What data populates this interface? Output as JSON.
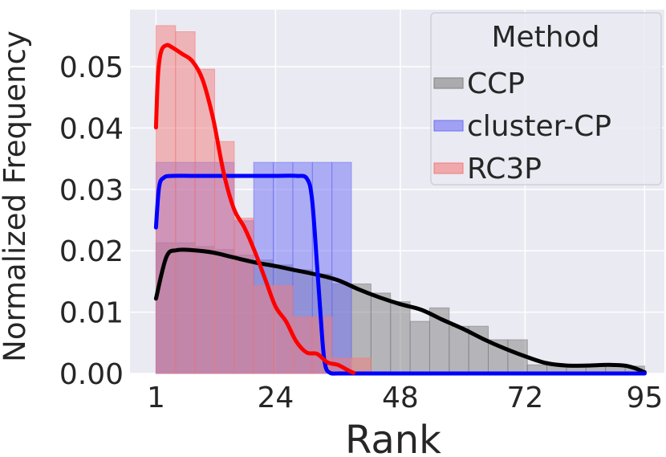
{
  "chart_data": {
    "type": "histogram",
    "title": "",
    "xlabel": "Rank",
    "ylabel": "Normalized Frequency",
    "xlim": [
      -4,
      98.8
    ],
    "ylim": [
      0,
      0.0593
    ],
    "xticks": [
      1,
      24,
      48,
      72,
      95
    ],
    "xtick_labels": [
      "1",
      "24",
      "48",
      "72",
      "95"
    ],
    "yticks": [
      0,
      0.01,
      0.02,
      0.03,
      0.04,
      0.05
    ],
    "ytick_labels": [
      "0.00",
      "0.01",
      "0.02",
      "0.03",
      "0.04",
      "0.05"
    ],
    "grid": true,
    "legend": {
      "title": "Method",
      "placement": "top-right"
    },
    "series": [
      {
        "name": "CCP",
        "color": "#808080",
        "line_color": "#000000",
        "hist_edges": [
          1,
          4.76,
          8.52,
          12.28,
          16.04,
          19.8,
          23.56,
          27.32,
          31.08,
          34.84,
          38.6,
          42.36,
          46.12,
          49.88,
          53.64,
          57.4,
          61.16,
          64.92,
          68.68,
          72.44,
          76.2,
          79.96,
          83.72,
          87.48,
          91.24,
          95
        ],
        "hist_values": [
          0.0213,
          0.0213,
          0.0207,
          0.0202,
          0.0193,
          0.0185,
          0.0177,
          0.0169,
          0.0162,
          0.0146,
          0.0146,
          0.0131,
          0.0117,
          0.0085,
          0.0107,
          0.0077,
          0.0077,
          0.0055,
          0.0055,
          0.0014,
          0.0014,
          0.0014,
          0.0014,
          0.0014,
          0.0012
        ],
        "kde_x": [
          1,
          3,
          5,
          8,
          12,
          16,
          20,
          24,
          28,
          32,
          36,
          40,
          44,
          48,
          52,
          56,
          60,
          64,
          68,
          72,
          76,
          80,
          84,
          88,
          91,
          93,
          95
        ],
        "kde_y": [
          0.0122,
          0.019,
          0.0201,
          0.0201,
          0.0197,
          0.0189,
          0.0181,
          0.0175,
          0.0168,
          0.0161,
          0.0152,
          0.0137,
          0.0124,
          0.0113,
          0.0104,
          0.0088,
          0.0073,
          0.0056,
          0.0041,
          0.0028,
          0.0017,
          0.0013,
          0.0013,
          0.0014,
          0.0013,
          0.0009,
          0.0002
        ]
      },
      {
        "name": "cluster-CP",
        "color": "#6e6ef5",
        "line_color": "#0000ff",
        "hist_edges": [
          1,
          4.76,
          8.52,
          12.28,
          16.04,
          19.8,
          23.56,
          27.32,
          31.08,
          34.84,
          38.6,
          42.36,
          46.12,
          49.88,
          53.64,
          57.4,
          61.16,
          64.92,
          68.68,
          72.44,
          76.2,
          79.96,
          83.72,
          87.48,
          91.24,
          95
        ],
        "hist_values": [
          0.0344,
          0.0344,
          0.0344,
          0.0344,
          0.0249,
          0.0344,
          0.0344,
          0.0344,
          0.0344,
          0.0344,
          0,
          0,
          0,
          0,
          0,
          0,
          0,
          0,
          0,
          0,
          0,
          0,
          0,
          0,
          0
        ],
        "kde_x": [
          1,
          1.6,
          2.5,
          4,
          8,
          12,
          16,
          20,
          24,
          28,
          30,
          31,
          32,
          33,
          33.6,
          34.5,
          36,
          40,
          50,
          60,
          70,
          80,
          90,
          95
        ],
        "kde_y": [
          0.0238,
          0.0304,
          0.0319,
          0.0322,
          0.0322,
          0.0322,
          0.0322,
          0.0322,
          0.0322,
          0.0322,
          0.0318,
          0.0285,
          0.0175,
          0.0055,
          0.0012,
          0.0001,
          0,
          0,
          0,
          0,
          0,
          0,
          0,
          0
        ]
      },
      {
        "name": "RC3P",
        "color": "#f27c7c",
        "line_color": "#ff0000",
        "hist_edges": [
          1,
          4.76,
          8.52,
          12.28,
          16.04,
          19.8,
          23.56,
          27.32,
          31.08,
          34.84,
          38.6,
          42.36,
          46.12,
          49.88,
          53.64,
          57.4,
          61.16,
          64.92,
          68.68,
          72.44,
          76.2,
          79.96,
          83.72,
          87.48,
          91.24,
          95
        ],
        "hist_values": [
          0.0567,
          0.0557,
          0.0496,
          0.0378,
          0.0253,
          0.0143,
          0.0143,
          0.0092,
          0.0092,
          0.0025,
          0.0025,
          0,
          0,
          0,
          0,
          0,
          0,
          0,
          0,
          0,
          0,
          0,
          0,
          0,
          0
        ],
        "kde_x": [
          1,
          1.4,
          2,
          3,
          4,
          6,
          8,
          10,
          12,
          14,
          16,
          18,
          20,
          22,
          24,
          26,
          28,
          30,
          32,
          34,
          36,
          38,
          39
        ],
        "kde_y": [
          0.0401,
          0.0488,
          0.0525,
          0.0535,
          0.0532,
          0.0521,
          0.0509,
          0.0478,
          0.0415,
          0.0328,
          0.0268,
          0.0238,
          0.0199,
          0.0154,
          0.0109,
          0.0085,
          0.0052,
          0.0034,
          0.0032,
          0.0018,
          0.0014,
          0.0005,
          0.0001
        ]
      }
    ]
  }
}
